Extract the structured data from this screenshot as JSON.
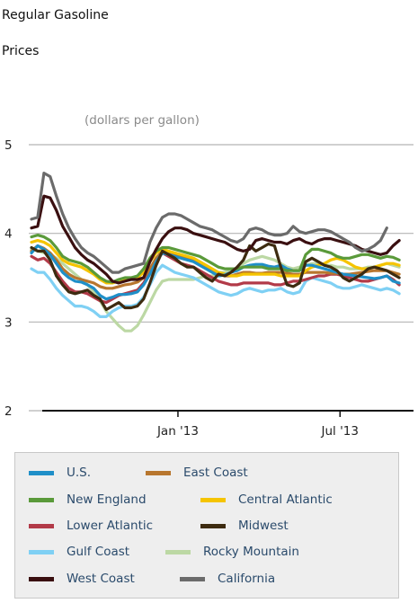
{
  "title_line1": "Regular Gasoline",
  "title_line2": "Prices",
  "units": "(dollars per gallon)",
  "chart_data": {
    "type": "line",
    "title": "Regular Gasoline Prices",
    "ylabel": "(dollars per gallon)",
    "ylim": [
      2,
      5
    ],
    "y_ticks": [
      2,
      3,
      4,
      5
    ],
    "x_ticks": [
      "Jan '13",
      "Jul '13"
    ],
    "x_tick_positions": [
      23.5,
      49.5
    ],
    "x_range": [
      0,
      61
    ],
    "grid": true,
    "legend_position": "bottom",
    "series": [
      {
        "name": "U.S.",
        "color": "#1f8fc8",
        "values": [
          3.78,
          3.86,
          3.82,
          3.76,
          3.66,
          3.56,
          3.5,
          3.46,
          3.45,
          3.42,
          3.38,
          3.3,
          3.26,
          3.28,
          3.31,
          3.31,
          3.32,
          3.34,
          3.42,
          3.54,
          3.68,
          3.78,
          3.76,
          3.74,
          3.72,
          3.7,
          3.68,
          3.64,
          3.6,
          3.56,
          3.52,
          3.53,
          3.56,
          3.58,
          3.62,
          3.64,
          3.65,
          3.65,
          3.63,
          3.62,
          3.64,
          3.6,
          3.58,
          3.58,
          3.64,
          3.64,
          3.62,
          3.6,
          3.58,
          3.56,
          3.54,
          3.53,
          3.52,
          3.51,
          3.5,
          3.49,
          3.5,
          3.52,
          3.46,
          3.44
        ]
      },
      {
        "name": "East Coast",
        "color": "#b8762e",
        "values": [
          3.8,
          3.86,
          3.83,
          3.78,
          3.7,
          3.6,
          3.54,
          3.5,
          3.48,
          3.46,
          3.44,
          3.4,
          3.38,
          3.38,
          3.4,
          3.42,
          3.43,
          3.45,
          3.5,
          3.6,
          3.72,
          3.8,
          3.78,
          3.76,
          3.74,
          3.72,
          3.7,
          3.66,
          3.62,
          3.58,
          3.55,
          3.52,
          3.52,
          3.54,
          3.56,
          3.56,
          3.55,
          3.55,
          3.56,
          3.56,
          3.56,
          3.55,
          3.54,
          3.54,
          3.56,
          3.56,
          3.56,
          3.56,
          3.55,
          3.55,
          3.54,
          3.54,
          3.55,
          3.56,
          3.57,
          3.58,
          3.58,
          3.58,
          3.56,
          3.54
        ]
      },
      {
        "name": "New England",
        "color": "#5a9a3a",
        "values": [
          3.96,
          3.98,
          3.96,
          3.92,
          3.84,
          3.74,
          3.7,
          3.68,
          3.66,
          3.62,
          3.56,
          3.5,
          3.46,
          3.45,
          3.48,
          3.5,
          3.5,
          3.52,
          3.6,
          3.72,
          3.8,
          3.84,
          3.84,
          3.82,
          3.8,
          3.78,
          3.76,
          3.74,
          3.7,
          3.66,
          3.62,
          3.6,
          3.6,
          3.6,
          3.62,
          3.62,
          3.62,
          3.62,
          3.6,
          3.6,
          3.6,
          3.58,
          3.58,
          3.58,
          3.76,
          3.82,
          3.82,
          3.8,
          3.78,
          3.74,
          3.72,
          3.72,
          3.74,
          3.76,
          3.76,
          3.74,
          3.72,
          3.74,
          3.73,
          3.7
        ]
      },
      {
        "name": "Central Atlantic",
        "color": "#f5c400",
        "values": [
          3.9,
          3.92,
          3.9,
          3.86,
          3.78,
          3.7,
          3.66,
          3.64,
          3.62,
          3.58,
          3.54,
          3.48,
          3.44,
          3.44,
          3.46,
          3.48,
          3.5,
          3.5,
          3.56,
          3.68,
          3.78,
          3.82,
          3.8,
          3.78,
          3.76,
          3.74,
          3.72,
          3.68,
          3.64,
          3.6,
          3.56,
          3.54,
          3.52,
          3.52,
          3.54,
          3.54,
          3.54,
          3.54,
          3.54,
          3.54,
          3.52,
          3.52,
          3.52,
          3.52,
          3.58,
          3.62,
          3.64,
          3.66,
          3.7,
          3.72,
          3.7,
          3.66,
          3.62,
          3.6,
          3.6,
          3.62,
          3.64,
          3.66,
          3.66,
          3.64
        ]
      },
      {
        "name": "Lower Atlantic",
        "color": "#b23a48",
        "values": [
          3.74,
          3.7,
          3.72,
          3.66,
          3.56,
          3.46,
          3.38,
          3.34,
          3.34,
          3.32,
          3.28,
          3.24,
          3.22,
          3.26,
          3.3,
          3.32,
          3.34,
          3.36,
          3.44,
          3.56,
          3.7,
          3.78,
          3.74,
          3.7,
          3.66,
          3.64,
          3.62,
          3.58,
          3.54,
          3.5,
          3.46,
          3.44,
          3.42,
          3.42,
          3.44,
          3.44,
          3.44,
          3.44,
          3.44,
          3.42,
          3.42,
          3.44,
          3.46,
          3.46,
          3.48,
          3.5,
          3.52,
          3.52,
          3.54,
          3.54,
          3.52,
          3.5,
          3.48,
          3.46,
          3.46,
          3.48,
          3.5,
          3.52,
          3.48,
          3.42
        ]
      },
      {
        "name": "Midwest",
        "color": "#3d2b10",
        "values": [
          3.84,
          3.8,
          3.8,
          3.7,
          3.52,
          3.42,
          3.34,
          3.32,
          3.34,
          3.36,
          3.3,
          3.26,
          3.14,
          3.18,
          3.22,
          3.16,
          3.16,
          3.18,
          3.26,
          3.44,
          3.64,
          3.8,
          3.76,
          3.72,
          3.66,
          3.62,
          3.62,
          3.56,
          3.5,
          3.46,
          3.54,
          3.52,
          3.56,
          3.62,
          3.7,
          3.86,
          3.8,
          3.84,
          3.88,
          3.86,
          3.62,
          3.42,
          3.4,
          3.44,
          3.68,
          3.72,
          3.68,
          3.64,
          3.62,
          3.58,
          3.5,
          3.46,
          3.5,
          3.54,
          3.6,
          3.62,
          3.6,
          3.58,
          3.54,
          3.5
        ]
      },
      {
        "name": "Gulf Coast",
        "color": "#7fd0f4",
        "values": [
          3.6,
          3.56,
          3.56,
          3.48,
          3.38,
          3.3,
          3.24,
          3.18,
          3.18,
          3.16,
          3.12,
          3.06,
          3.06,
          3.12,
          3.16,
          3.18,
          3.18,
          3.2,
          3.28,
          3.42,
          3.56,
          3.64,
          3.6,
          3.56,
          3.54,
          3.52,
          3.5,
          3.46,
          3.42,
          3.38,
          3.34,
          3.32,
          3.3,
          3.32,
          3.36,
          3.38,
          3.36,
          3.34,
          3.36,
          3.36,
          3.38,
          3.34,
          3.32,
          3.34,
          3.46,
          3.5,
          3.48,
          3.46,
          3.44,
          3.4,
          3.38,
          3.38,
          3.4,
          3.42,
          3.4,
          3.38,
          3.36,
          3.38,
          3.36,
          3.32
        ]
      },
      {
        "name": "Rocky Mountain",
        "color": "#bcd8a4",
        "values": [
          3.82,
          3.8,
          3.78,
          3.76,
          3.72,
          3.66,
          3.6,
          3.54,
          3.48,
          3.42,
          3.34,
          3.24,
          3.12,
          3.04,
          2.96,
          2.9,
          2.9,
          2.96,
          3.08,
          3.22,
          3.36,
          3.46,
          3.48,
          3.48,
          3.48,
          3.48,
          3.48,
          3.5,
          3.52,
          3.52,
          3.56,
          3.56,
          3.58,
          3.6,
          3.66,
          3.7,
          3.72,
          3.74,
          3.72,
          3.7,
          3.66,
          3.62,
          3.6,
          3.62,
          3.64,
          3.66,
          3.66,
          3.64,
          3.64,
          3.62,
          3.62,
          3.6,
          3.6,
          3.6,
          3.62,
          3.62,
          3.64,
          3.66,
          3.64,
          3.62
        ]
      },
      {
        "name": "West Coast",
        "color": "#3a0f10",
        "values": [
          4.06,
          4.08,
          4.42,
          4.4,
          4.26,
          4.08,
          3.96,
          3.84,
          3.76,
          3.7,
          3.66,
          3.6,
          3.54,
          3.46,
          3.44,
          3.46,
          3.48,
          3.48,
          3.5,
          3.68,
          3.82,
          3.94,
          4.02,
          4.06,
          4.06,
          4.04,
          4.0,
          3.98,
          3.96,
          3.94,
          3.92,
          3.9,
          3.86,
          3.82,
          3.8,
          3.82,
          3.92,
          3.94,
          3.92,
          3.9,
          3.9,
          3.88,
          3.92,
          3.94,
          3.9,
          3.88,
          3.92,
          3.94,
          3.94,
          3.92,
          3.9,
          3.88,
          3.86,
          3.82,
          3.8,
          3.78,
          3.76,
          3.78,
          3.86,
          3.92
        ]
      },
      {
        "name": "California",
        "color": "#6b6b6b",
        "values": [
          4.16,
          4.18,
          4.68,
          4.64,
          4.42,
          4.22,
          4.06,
          3.94,
          3.84,
          3.78,
          3.74,
          3.68,
          3.62,
          3.56,
          3.56,
          3.6,
          3.62,
          3.64,
          3.66,
          3.9,
          4.06,
          4.18,
          4.22,
          4.22,
          4.2,
          4.16,
          4.12,
          4.08,
          4.06,
          4.04,
          4.0,
          3.96,
          3.92,
          3.9,
          3.94,
          4.04,
          4.06,
          4.04,
          4.0,
          3.98,
          3.98,
          4.0,
          4.08,
          4.02,
          4.0,
          4.02,
          4.04,
          4.04,
          4.02,
          3.98,
          3.94,
          3.9,
          3.84,
          3.8,
          3.82,
          3.86,
          3.92,
          4.06
        ]
      }
    ]
  },
  "legend": [
    {
      "label": "U.S.",
      "color": "#1f8fc8"
    },
    {
      "label": "East Coast",
      "color": "#b8762e"
    },
    {
      "label": "New England",
      "color": "#5a9a3a"
    },
    {
      "label": "Central Atlantic",
      "color": "#f5c400"
    },
    {
      "label": "Lower Atlantic",
      "color": "#b23a48"
    },
    {
      "label": "Midwest",
      "color": "#3d2b10"
    },
    {
      "label": "Gulf Coast",
      "color": "#7fd0f4"
    },
    {
      "label": "Rocky Mountain",
      "color": "#bcd8a4"
    },
    {
      "label": "West Coast",
      "color": "#3a0f10"
    },
    {
      "label": "California",
      "color": "#6b6b6b"
    }
  ]
}
